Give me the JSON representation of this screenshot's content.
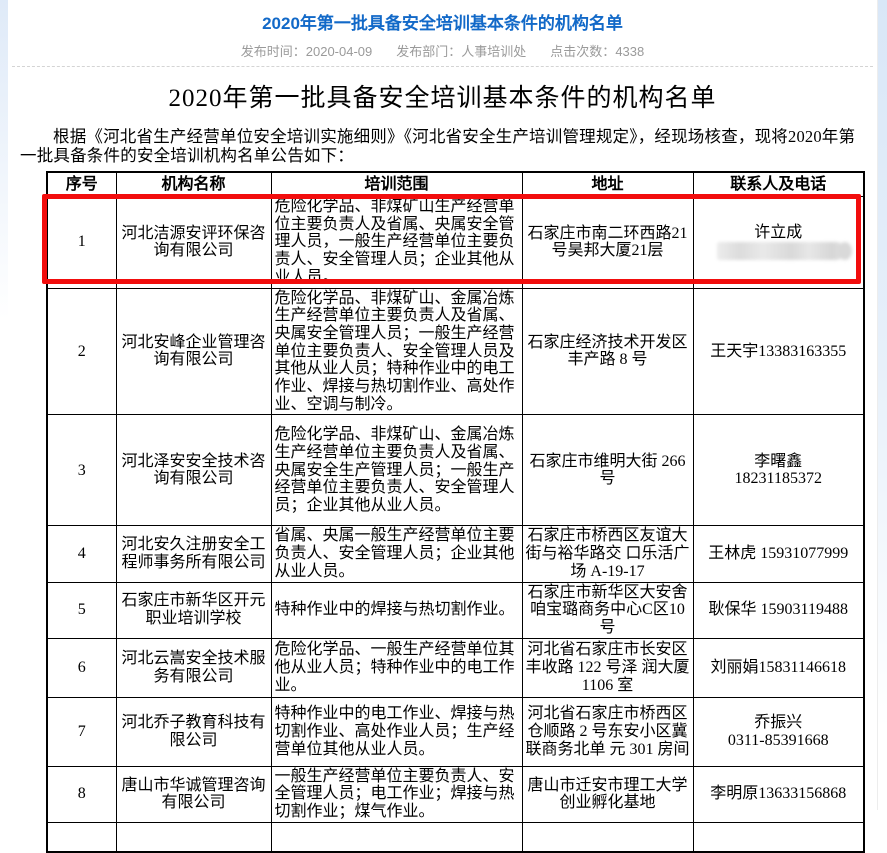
{
  "page": {
    "title": "2020年第一批具备安全培训基本条件的机构名单",
    "meta": {
      "publish_time_label": "发布时间：",
      "publish_time": "2020-04-09",
      "department_label": "发布部门：",
      "department": "人事培训处",
      "clicks_label": "点击次数：",
      "clicks": "4338"
    }
  },
  "document": {
    "heading": "2020年第一批具备安全培训基本条件的机构名单",
    "intro": "根据《河北省生产经营单位安全培训实施细则》《河北省安全生产培训管理规定》，经现场核查，现将2020年第一批具备条件的安全培训机构名单公告如下："
  },
  "table": {
    "headers": [
      "序号",
      "机构名称",
      "培训范围",
      "地址",
      "联系人及电话"
    ],
    "rows": [
      {
        "no": "1",
        "name": "河北洁源安评环保咨询有限公司",
        "scope": "危险化学品、非煤矿山生产经营单位主要负责人及省属、央属安全管理人员，一般生产经营单位主要负责人、安全管理人员；企业其他从业人员。",
        "address": "石家庄市南二环西路21号昊邦大厦21层",
        "contact": "许立成",
        "contact_redacted": true,
        "highlighted": true
      },
      {
        "no": "2",
        "name": "河北安峰企业管理咨询有限公司",
        "scope": "危险化学品、非煤矿山、金属冶炼生产经营单位主要负责人及省属、央属安全管理人员；一般生产经营单位主要负责人、安全管理人员及其他从业人员；特种作业中的电工作业、焊接与热切割作业、高处作业、空调与制冷。",
        "address": "石家庄经济技术开发区丰产路 8 号",
        "contact": "王天宇13383163355"
      },
      {
        "no": "3",
        "name": "河北泽安安全技术咨询有限公司",
        "scope": "危险化学品、非煤矿山、金属冶炼生产经营单位主要负责人及省属、央属安全生产管理人员；一般生产经营单位主要负责人、安全管理人员；企业其他从业人员。",
        "address": "石家庄市维明大街 266 号",
        "contact": "李曙鑫\n18231185372"
      },
      {
        "no": "4",
        "name": "河北安久注册安全工程师事务所有限公司",
        "scope": "省属、央属一般生产经营单位主要负责人、安全管理人员；企业其他从业人员。",
        "address": "石家庄市桥西区友谊大街与裕华路交  口乐活广场 A-19-17",
        "contact": "王林虎 15931077999"
      },
      {
        "no": "5",
        "name": "石家庄市新华区开元职业培训学校",
        "scope": "特种作业中的焊接与热切割作业。",
        "address": "石家庄市新华区大安舍咱宝璐商务中心C区10号",
        "contact": "耿保华 15903119488"
      },
      {
        "no": "6",
        "name": "河北云嵩安全技术服务有限公司",
        "scope": "危险化学品、一般生产经营单位其他从业人员；特种作业中的电工作业。",
        "address": "河北省石家庄市长安区丰收路 122 号泽 润大厦 1106 室",
        "contact": "刘丽娟15831146618"
      },
      {
        "no": "7",
        "name": "河北乔子教育科技有限公司",
        "scope": "特种作业中的电工作业、焊接与热切割作业、高处作业人员；生产经营单位其他从业人员。",
        "address": "河北省石家庄市桥西区仓顺路 2 号东安小区冀联商务北单 元 301 房间",
        "contact": "乔振兴\n0311-85391668"
      },
      {
        "no": "8",
        "name": "唐山市华诚管理咨询有限公司",
        "scope": "一般生产经营单位主要负责人、安全管理人员；电工作业；焊接与热切割作业；煤气作业。",
        "address": "唐山市迁安市理工大学创业孵化基地",
        "contact": "李明原13633156868"
      }
    ]
  },
  "colors": {
    "title_blue": "#1269c8",
    "meta_gray": "#9a9a9a",
    "highlight_red": "#f20d0d",
    "table_border": "#000000"
  }
}
